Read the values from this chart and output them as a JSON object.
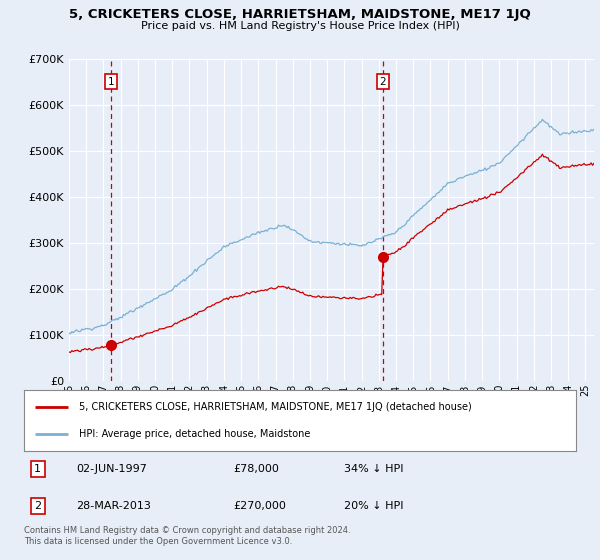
{
  "title": "5, CRICKETERS CLOSE, HARRIETSHAM, MAIDSTONE, ME17 1JQ",
  "subtitle": "Price paid vs. HM Land Registry's House Price Index (HPI)",
  "legend_line1": "5, CRICKETERS CLOSE, HARRIETSHAM, MAIDSTONE, ME17 1JQ (detached house)",
  "legend_line2": "HPI: Average price, detached house, Maidstone",
  "transaction1_date": "02-JUN-1997",
  "transaction1_price": "£78,000",
  "transaction1_hpi": "34% ↓ HPI",
  "transaction2_date": "28-MAR-2013",
  "transaction2_price": "£270,000",
  "transaction2_hpi": "20% ↓ HPI",
  "footer": "Contains HM Land Registry data © Crown copyright and database right 2024.\nThis data is licensed under the Open Government Licence v3.0.",
  "red_color": "#cc0000",
  "blue_color": "#7ab0d4",
  "background_color": "#e8eef8",
  "plot_bg": "#e8eef8",
  "grid_color": "#ffffff",
  "ylim": [
    0,
    700000
  ],
  "xlim_start": 1995.0,
  "xlim_end": 2025.5,
  "transaction1_x": 1997.42,
  "transaction1_y": 78000,
  "transaction2_x": 2013.23,
  "transaction2_y": 270000
}
